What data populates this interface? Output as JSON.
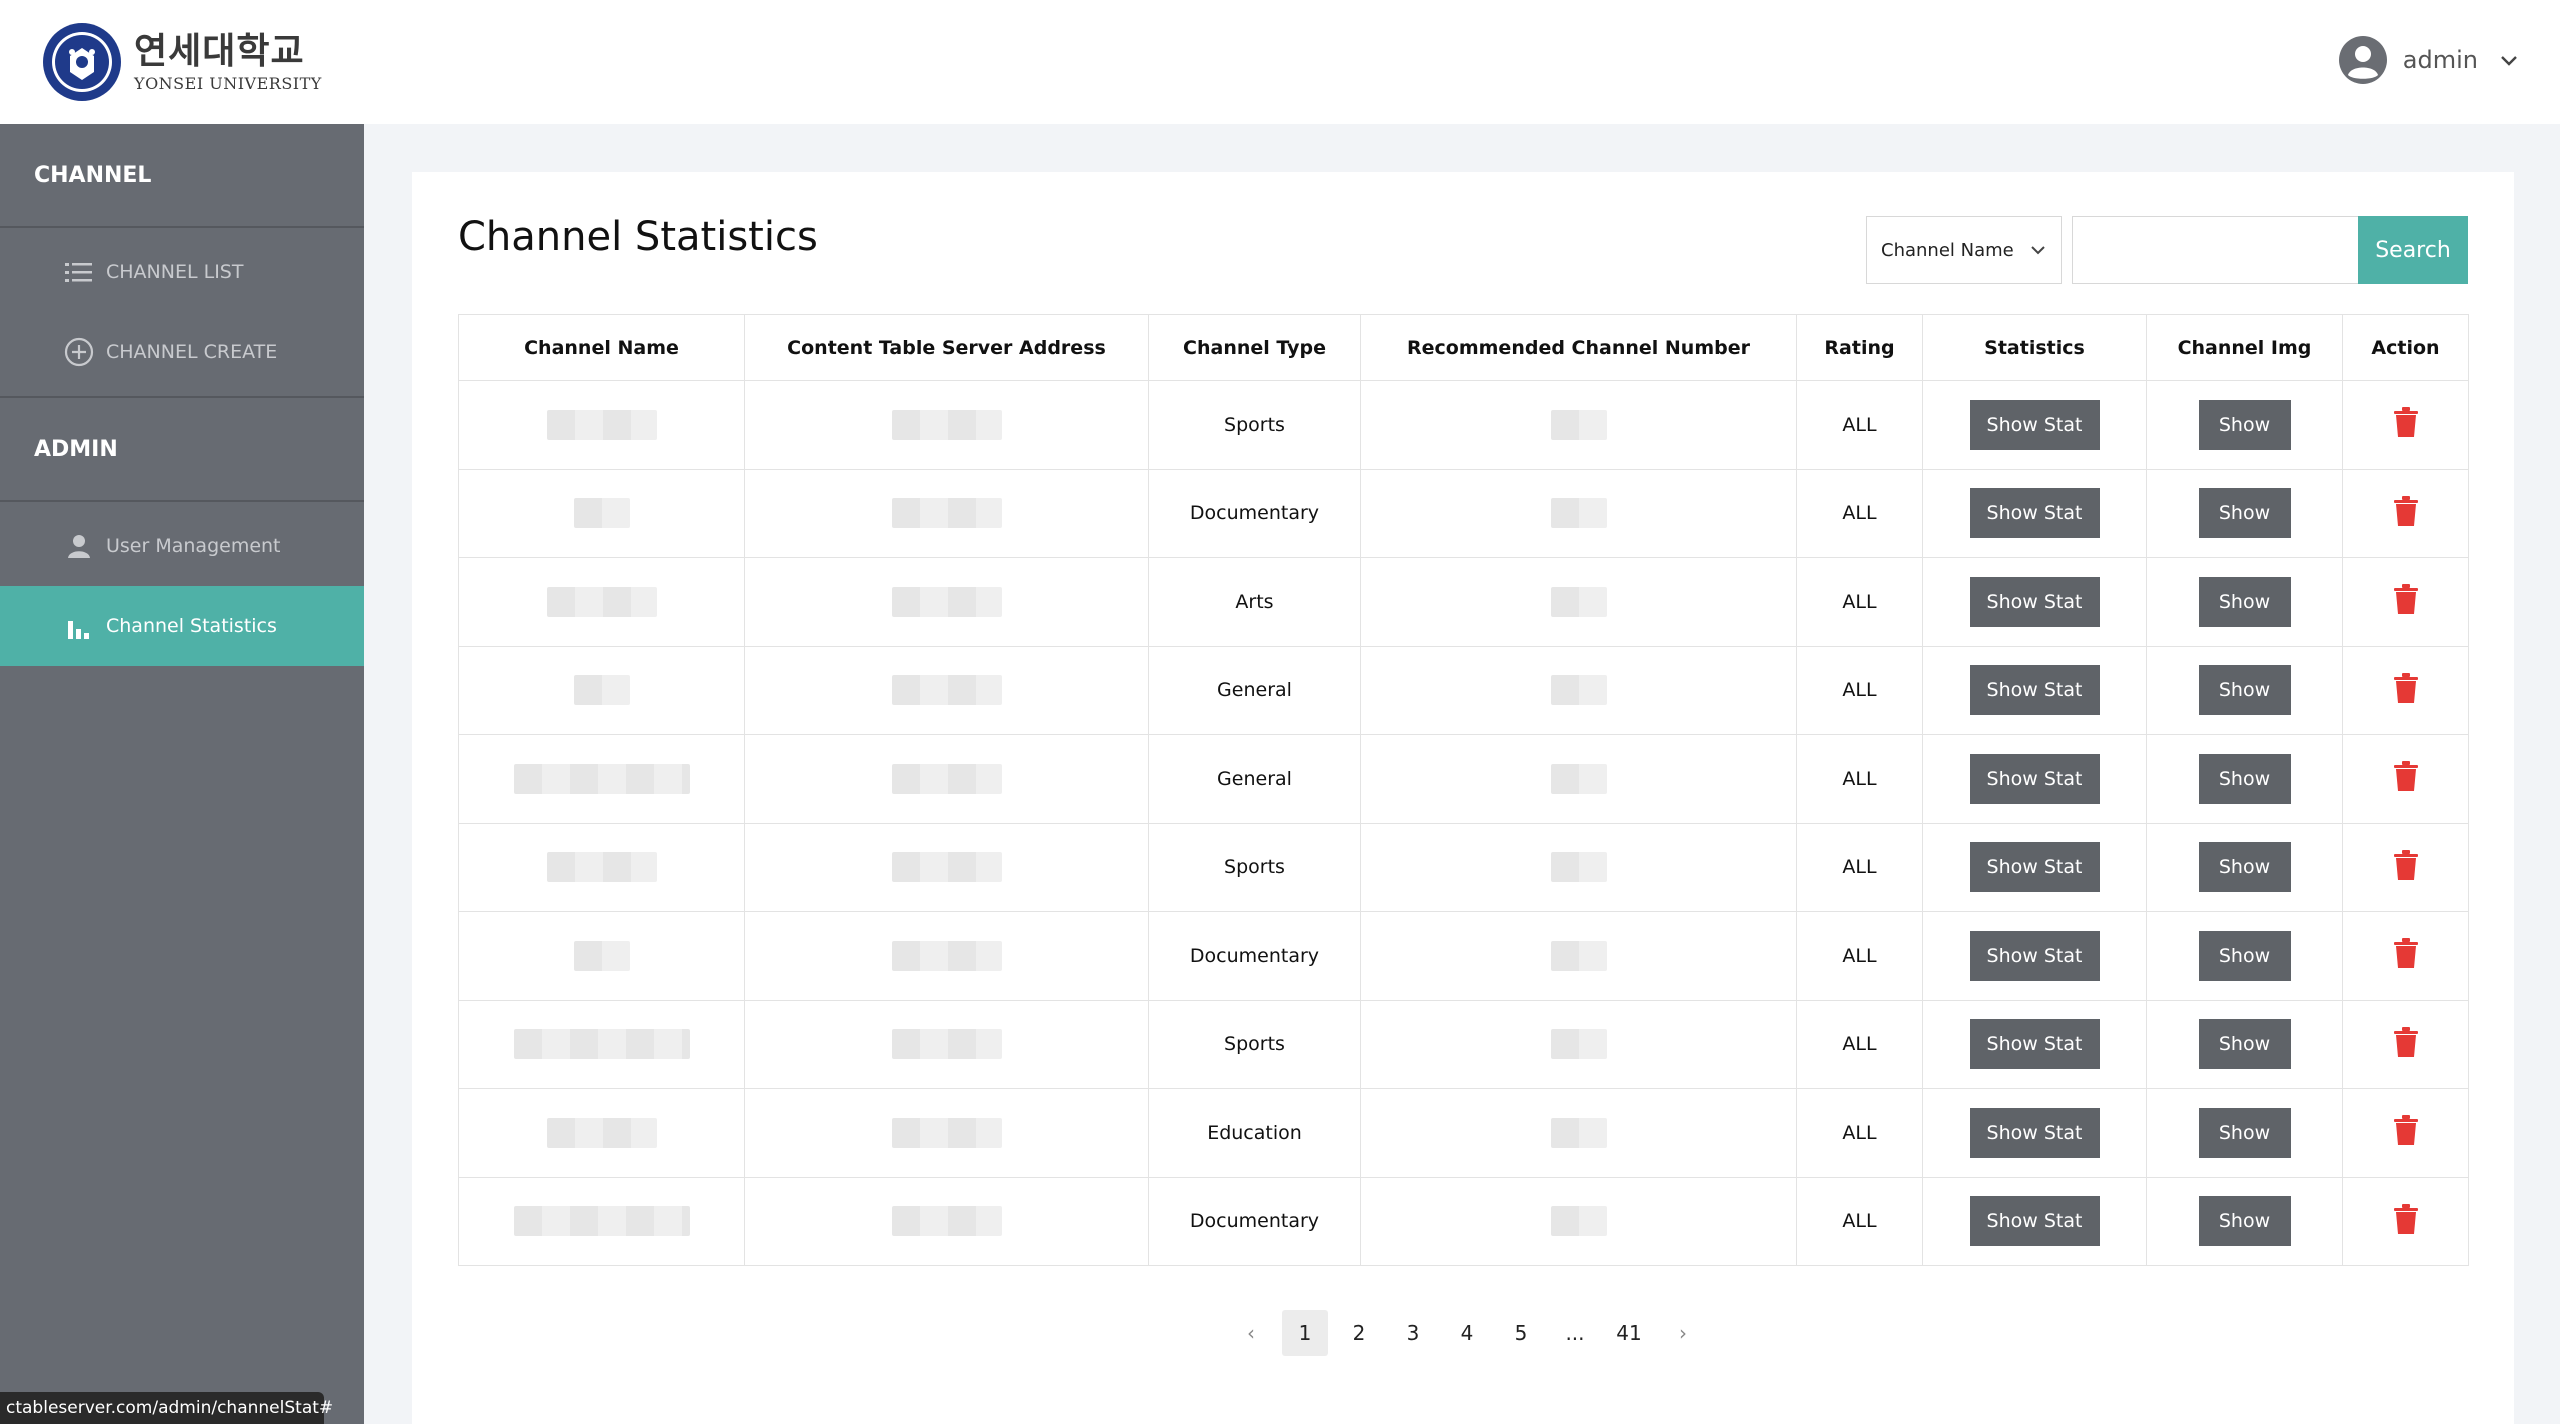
{
  "header": {
    "logo_kr": "연세대학교",
    "logo_en": "YONSEI UNIVERSITY",
    "user_name": "admin"
  },
  "sidebar": {
    "section_channel": "CHANNEL",
    "channel_items": [
      {
        "label": "CHANNEL LIST",
        "icon": "list-icon"
      },
      {
        "label": "CHANNEL CREATE",
        "icon": "plus-circle-icon"
      }
    ],
    "section_admin": "ADMIN",
    "admin_items": [
      {
        "label": "User Management",
        "icon": "user-icon"
      },
      {
        "label": "Channel Statistics",
        "icon": "bar-chart-icon",
        "active": true
      }
    ]
  },
  "main": {
    "title": "Channel Statistics",
    "filter_selected": "Channel Name",
    "search_placeholder": "",
    "search_label": "Search"
  },
  "table": {
    "columns": [
      "Channel Name",
      "Content Table Server Address",
      "Channel Type",
      "Recommended Channel Number",
      "Rating",
      "Statistics",
      "Channel Img",
      "Action"
    ],
    "rows": [
      {
        "type": "Sports",
        "rating": "ALL"
      },
      {
        "type": "Documentary",
        "rating": "ALL"
      },
      {
        "type": "Arts",
        "rating": "ALL"
      },
      {
        "type": "General",
        "rating": "ALL"
      },
      {
        "type": "General",
        "rating": "ALL"
      },
      {
        "type": "Sports",
        "rating": "ALL"
      },
      {
        "type": "Documentary",
        "rating": "ALL"
      },
      {
        "type": "Sports",
        "rating": "ALL"
      },
      {
        "type": "Education",
        "rating": "ALL"
      },
      {
        "type": "Documentary",
        "rating": "ALL"
      }
    ],
    "stat_button_label": "Show Stat",
    "img_button_label": "Show"
  },
  "pagination": {
    "prev": "‹",
    "pages": [
      "1",
      "2",
      "3",
      "4",
      "5",
      "...",
      "41"
    ],
    "current": "1",
    "next": "›"
  },
  "status_url": "ctableserver.com/admin/channelStat#",
  "colors": {
    "accent": "#4fb1a7",
    "sidebar": "#676b72",
    "button": "#5f6368",
    "danger": "#e53935"
  }
}
